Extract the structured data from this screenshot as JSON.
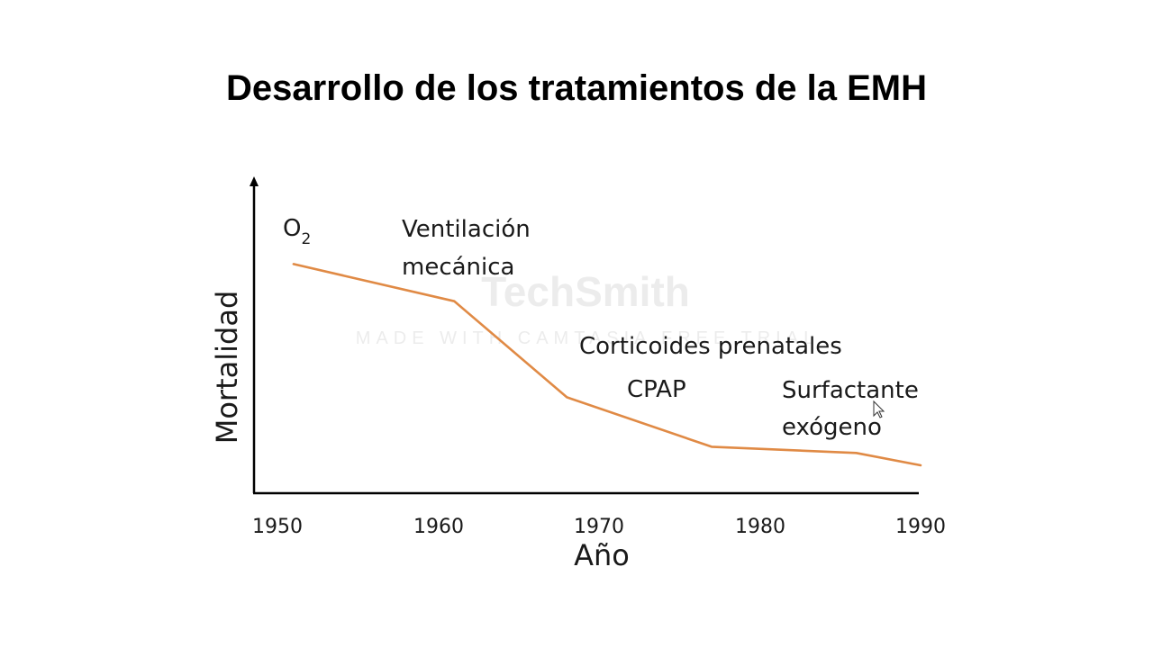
{
  "chart_data": {
    "type": "line",
    "title": "Desarrollo de los tratamientos de la EMH",
    "xlabel": "Año",
    "ylabel": "Mortalidad",
    "xlim": [
      1950,
      1990
    ],
    "ylim": [
      0,
      100
    ],
    "x_ticks": [
      "1950",
      "1960",
      "1970",
      "1980",
      "1990"
    ],
    "y_ticks": [],
    "grid": false,
    "series": [
      {
        "color": "#e08a45",
        "x": [
          1951,
          1961,
          1968,
          1977,
          1986,
          1990
        ],
        "y": [
          74,
          62,
          31,
          15,
          13,
          9
        ]
      }
    ],
    "annotations": [
      {
        "id": "o2",
        "lines": [
          "O",
          "2"
        ]
      },
      {
        "id": "ventilacion",
        "lines": [
          "Ventilación",
          "mecánica"
        ]
      },
      {
        "id": "corticoides",
        "lines": [
          "Corticoides prenatales"
        ]
      },
      {
        "id": "cpap",
        "lines": [
          "CPAP"
        ]
      },
      {
        "id": "surfactante",
        "lines": [
          "Surfactante",
          "exógeno"
        ]
      }
    ]
  },
  "watermark": {
    "brand": "TechSmith",
    "tagline": "MADE WITH CAMTASIA FREE TRIAL"
  }
}
